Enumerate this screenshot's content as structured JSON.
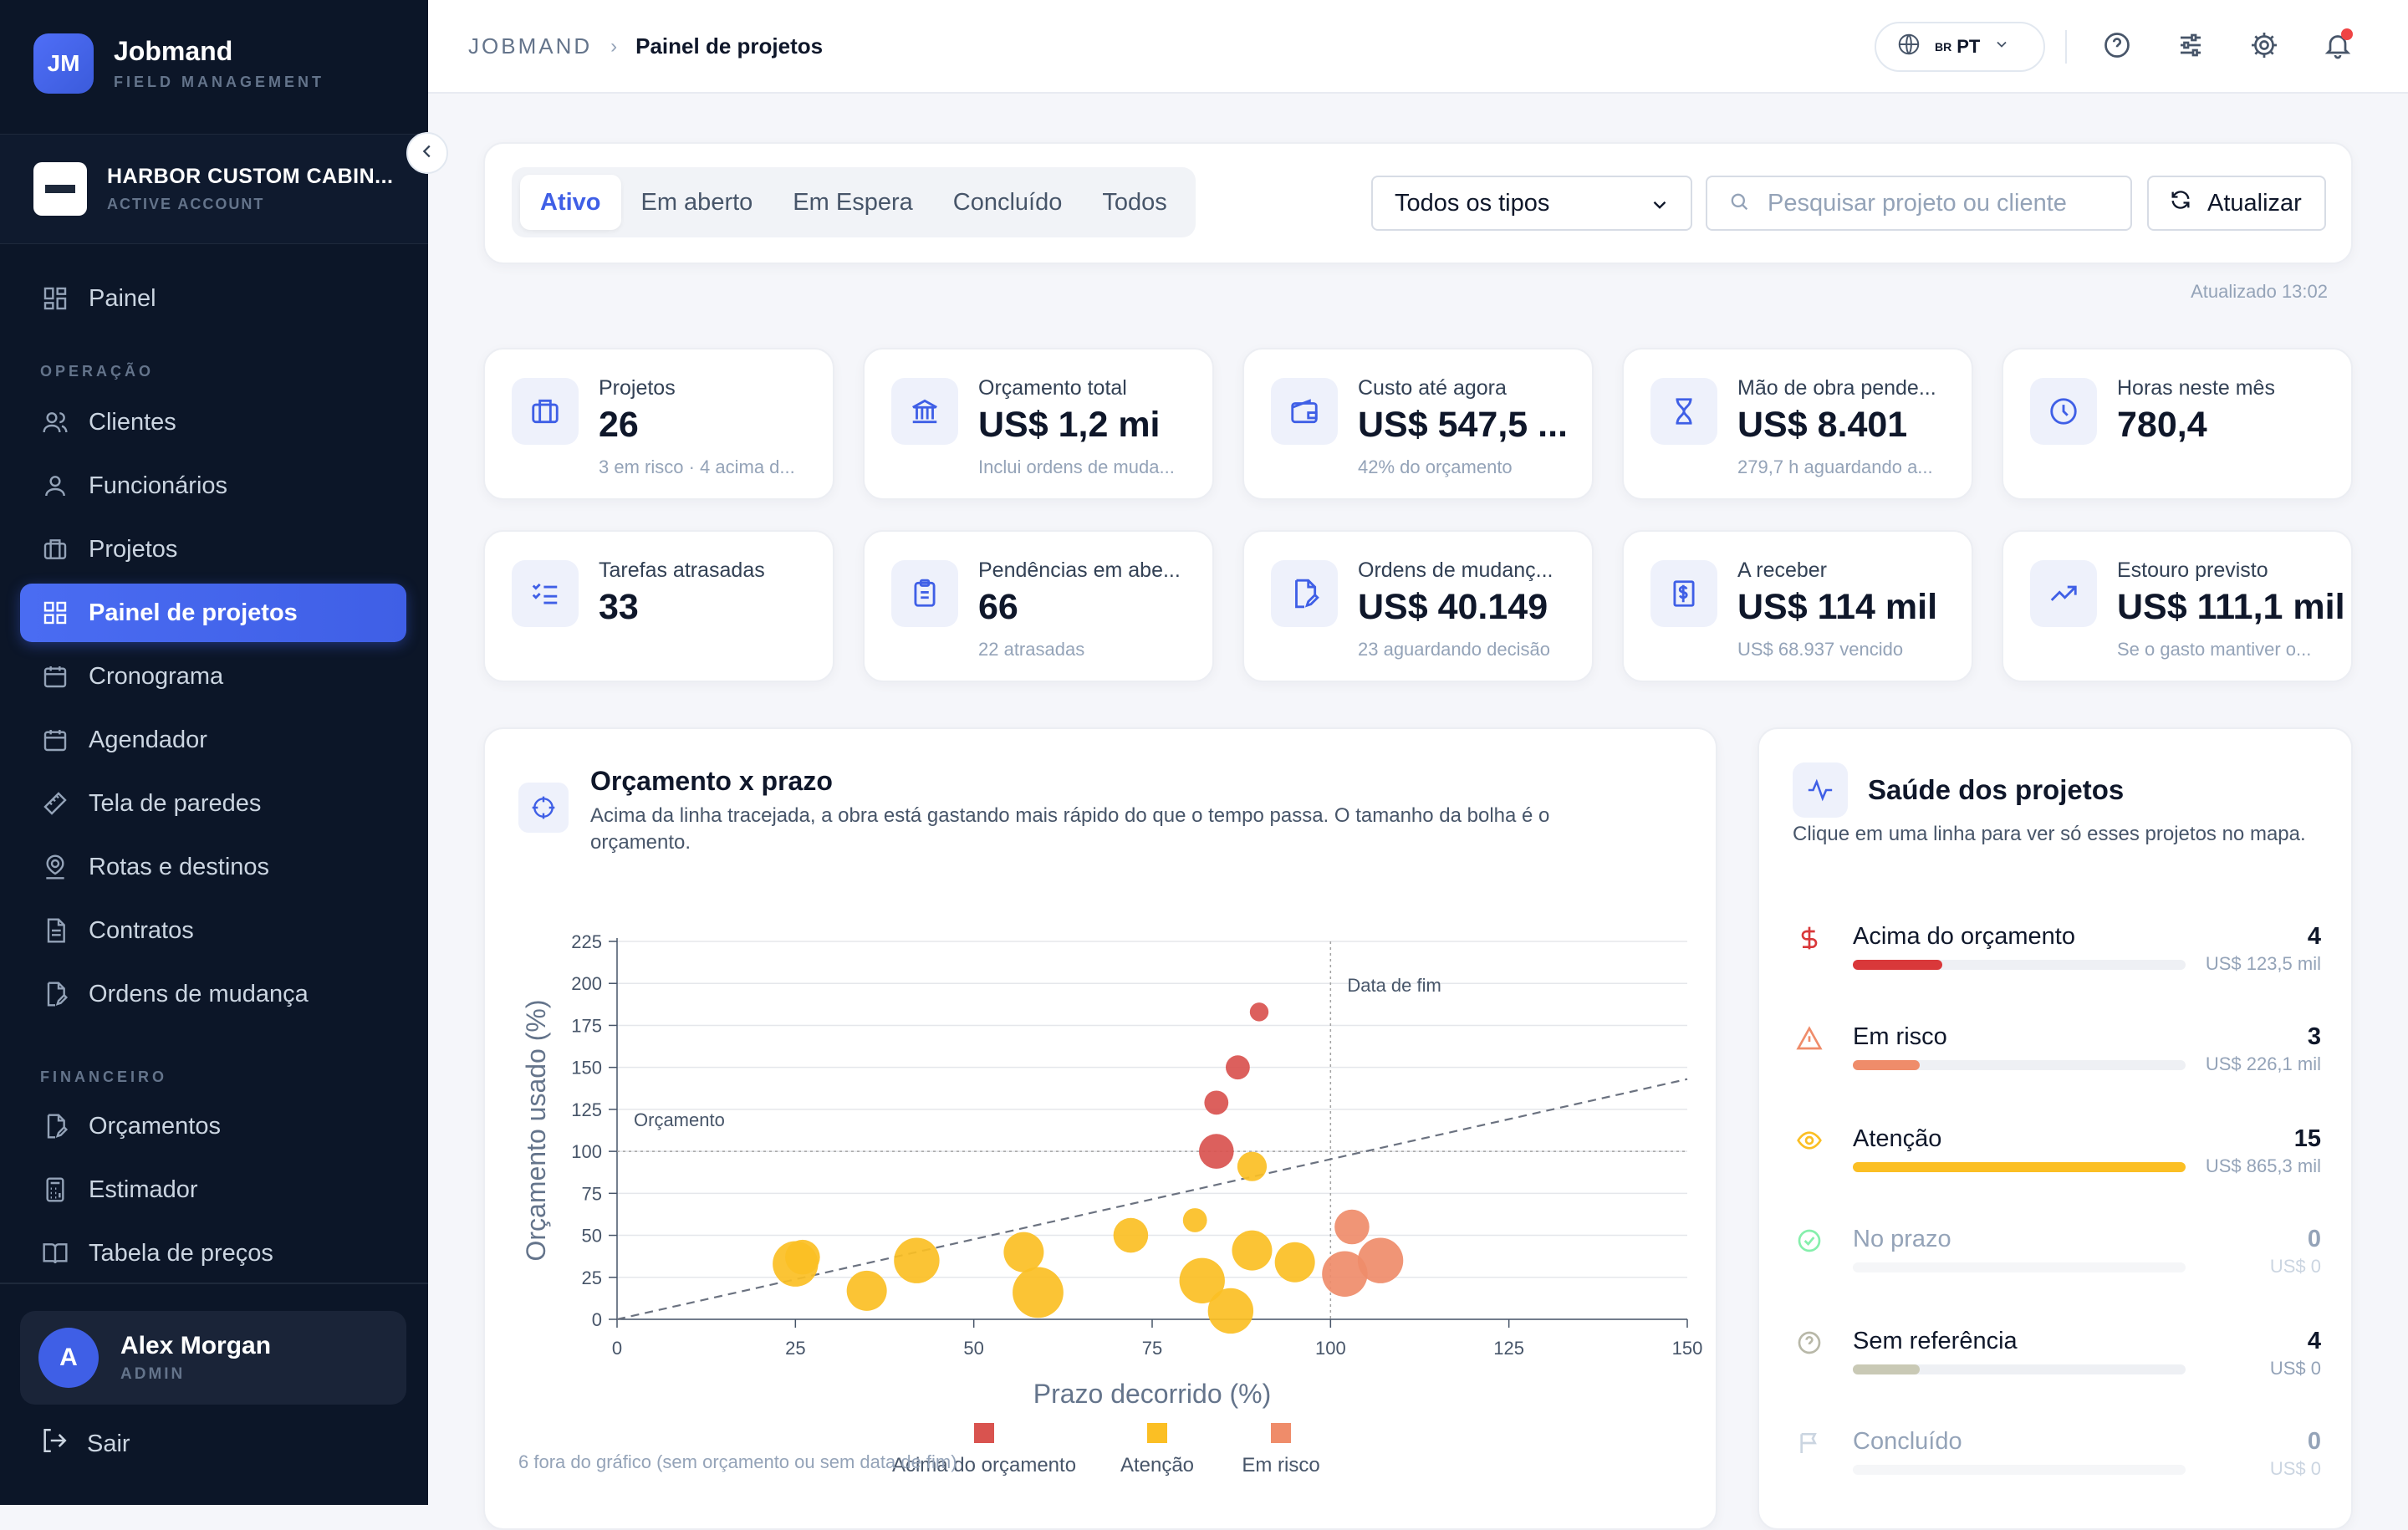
{
  "brand": {
    "logo_text": "JM",
    "name": "Jobmand",
    "subtitle": "FIELD MANAGEMENT"
  },
  "account": {
    "name": "HARBOR CUSTOM CABIN...",
    "status": "ACTIVE ACCOUNT"
  },
  "sidebar": {
    "items": [
      {
        "label": "Painel",
        "icon": "dashboard-icon"
      },
      {
        "label": "Clientes",
        "icon": "users-icon"
      },
      {
        "label": "Funcionários",
        "icon": "user-icon"
      },
      {
        "label": "Projetos",
        "icon": "briefcase-icon"
      },
      {
        "label": "Painel de projetos",
        "icon": "grid-icon",
        "active": true
      },
      {
        "label": "Cronograma",
        "icon": "calendar-icon"
      },
      {
        "label": "Agendador",
        "icon": "calendar-icon"
      },
      {
        "label": "Tela de paredes",
        "icon": "ruler-icon"
      },
      {
        "label": "Rotas e destinos",
        "icon": "map-pin-icon"
      },
      {
        "label": "Contratos",
        "icon": "document-icon"
      },
      {
        "label": "Ordens de mudança",
        "icon": "file-edit-icon"
      },
      {
        "label": "Orçamentos",
        "icon": "file-edit-icon"
      },
      {
        "label": "Estimador",
        "icon": "calculator-icon"
      },
      {
        "label": "Tabela de preços",
        "icon": "book-icon"
      }
    ],
    "section_operacao": "OPERAÇÃO",
    "section_financeiro": "FINANCEIRO",
    "user": {
      "initial": "A",
      "name": "Alex Morgan",
      "role": "ADMIN"
    },
    "logout": "Sair"
  },
  "header": {
    "breadcrumb_root": "JOBMAND",
    "breadcrumb_current": "Painel de projetos",
    "lang_flag": "BR",
    "lang_code": "PT"
  },
  "filters": {
    "tabs": [
      "Ativo",
      "Em aberto",
      "Em Espera",
      "Concluído",
      "Todos"
    ],
    "active_tab": "Ativo",
    "type_select": "Todos os tipos",
    "search_placeholder": "Pesquisar projeto ou cliente",
    "refresh_label": "Atualizar",
    "updated": "Atualizado 13:02"
  },
  "stats": [
    {
      "label": "Projetos",
      "value": "26",
      "sub": "3 em risco · 4 acima d...",
      "icon": "briefcase-icon"
    },
    {
      "label": "Orçamento total",
      "value": "US$ 1,2 mi",
      "sub": "Inclui ordens de muda...",
      "icon": "bank-icon"
    },
    {
      "label": "Custo até agora",
      "value": "US$ 547,5 ...",
      "sub": "42% do orçamento",
      "icon": "wallet-icon"
    },
    {
      "label": "Mão de obra pende...",
      "value": "US$ 8.401",
      "sub": "279,7 h aguardando a...",
      "icon": "hourglass-icon"
    },
    {
      "label": "Horas neste mês",
      "value": "780,4",
      "sub": "",
      "icon": "clock-icon"
    },
    {
      "label": "Tarefas atrasadas",
      "value": "33",
      "sub": "",
      "icon": "checklist-icon"
    },
    {
      "label": "Pendências em abe...",
      "value": "66",
      "sub": "22 atrasadas",
      "icon": "clipboard-icon"
    },
    {
      "label": "Ordens de mudanç...",
      "value": "US$ 40.149",
      "sub": "23 aguardando decisão",
      "icon": "file-edit-icon"
    },
    {
      "label": "A receber",
      "value": "US$ 114 mil",
      "sub": "US$ 68.937 vencido",
      "icon": "receipt-dollar-icon"
    },
    {
      "label": "Estouro previsto",
      "value": "US$ 111,1 mil",
      "sub": "Se o gasto mantiver o...",
      "icon": "trending-up-icon"
    }
  ],
  "chart_card": {
    "title": "Orçamento x prazo",
    "description": "Acima da linha tracejada, a obra está gastando mais rápido do que o tempo passa. O tamanho da bolha é o orçamento.",
    "footnote": "6 fora do gráfico (sem orçamento ou sem data de fim)"
  },
  "chart_data": {
    "type": "scatter",
    "xlabel": "Prazo decorrido (%)",
    "ylabel": "Orçamento usado (%)",
    "xlim": [
      0,
      150
    ],
    "ylim": [
      0,
      225
    ],
    "xticks": [
      0,
      25,
      50,
      75,
      100,
      125,
      150
    ],
    "yticks": [
      0,
      25,
      50,
      75,
      100,
      125,
      150,
      175,
      200,
      225
    ],
    "reference_lines": {
      "budget_y": 100,
      "budget_label": "Orçamento",
      "end_date_x": 100,
      "end_date_label": "Data de fim",
      "diagonal": "y = x"
    },
    "legend_position": "bottom-center",
    "series": [
      {
        "name": "Acima do orçamento",
        "color": "#d9534f",
        "points": [
          {
            "x": 90,
            "y": 183,
            "size": 1
          },
          {
            "x": 87,
            "y": 150,
            "size": 2
          },
          {
            "x": 84,
            "y": 129,
            "size": 2
          },
          {
            "x": 84,
            "y": 100,
            "size": 4
          }
        ]
      },
      {
        "name": "Atenção",
        "color": "#fbbf24",
        "points": [
          {
            "x": 25,
            "y": 33,
            "size": 6
          },
          {
            "x": 26,
            "y": 37,
            "size": 4
          },
          {
            "x": 35,
            "y": 17,
            "size": 5
          },
          {
            "x": 42,
            "y": 35,
            "size": 6
          },
          {
            "x": 57,
            "y": 40,
            "size": 5
          },
          {
            "x": 59,
            "y": 16,
            "size": 7
          },
          {
            "x": 72,
            "y": 50,
            "size": 4
          },
          {
            "x": 81,
            "y": 59,
            "size": 2
          },
          {
            "x": 89,
            "y": 91,
            "size": 3
          },
          {
            "x": 82,
            "y": 23,
            "size": 6
          },
          {
            "x": 86,
            "y": 5,
            "size": 6
          },
          {
            "x": 89,
            "y": 41,
            "size": 5
          },
          {
            "x": 95,
            "y": 34,
            "size": 5
          }
        ]
      },
      {
        "name": "Em risco",
        "color": "#ef8c6a",
        "points": [
          {
            "x": 103,
            "y": 55,
            "size": 4
          },
          {
            "x": 107,
            "y": 35,
            "size": 6
          },
          {
            "x": 102,
            "y": 27,
            "size": 6
          }
        ]
      }
    ]
  },
  "health_card": {
    "title": "Saúde dos projetos",
    "description": "Clique em uma linha para ver só esses projetos no mapa.",
    "rows": [
      {
        "label": "Acima do orçamento",
        "count": "4",
        "amount": "US$ 123,5 mil",
        "progress": 0.27,
        "color": "#d9383a",
        "icon": "dollar-icon",
        "muted": false
      },
      {
        "label": "Em risco",
        "count": "3",
        "amount": "US$ 226,1 mil",
        "progress": 0.2,
        "color": "#ef8c6a",
        "icon": "warning-icon",
        "muted": false
      },
      {
        "label": "Atenção",
        "count": "15",
        "amount": "US$ 865,3 mil",
        "progress": 1.0,
        "color": "#fbbf24",
        "icon": "eye-icon",
        "muted": false
      },
      {
        "label": "No prazo",
        "count": "0",
        "amount": "US$ 0",
        "progress": 0,
        "color": "#22c55e",
        "icon": "check-circle-icon",
        "muted": true
      },
      {
        "label": "Sem referência",
        "count": "4",
        "amount": "US$ 0",
        "progress": 0.2,
        "color": "#c9c9b5",
        "icon": "help-circle-icon",
        "muted": false
      },
      {
        "label": "Concluído",
        "count": "0",
        "amount": "US$ 0",
        "progress": 0,
        "color": "#94a3b8",
        "icon": "flag-icon",
        "muted": true
      }
    ]
  }
}
